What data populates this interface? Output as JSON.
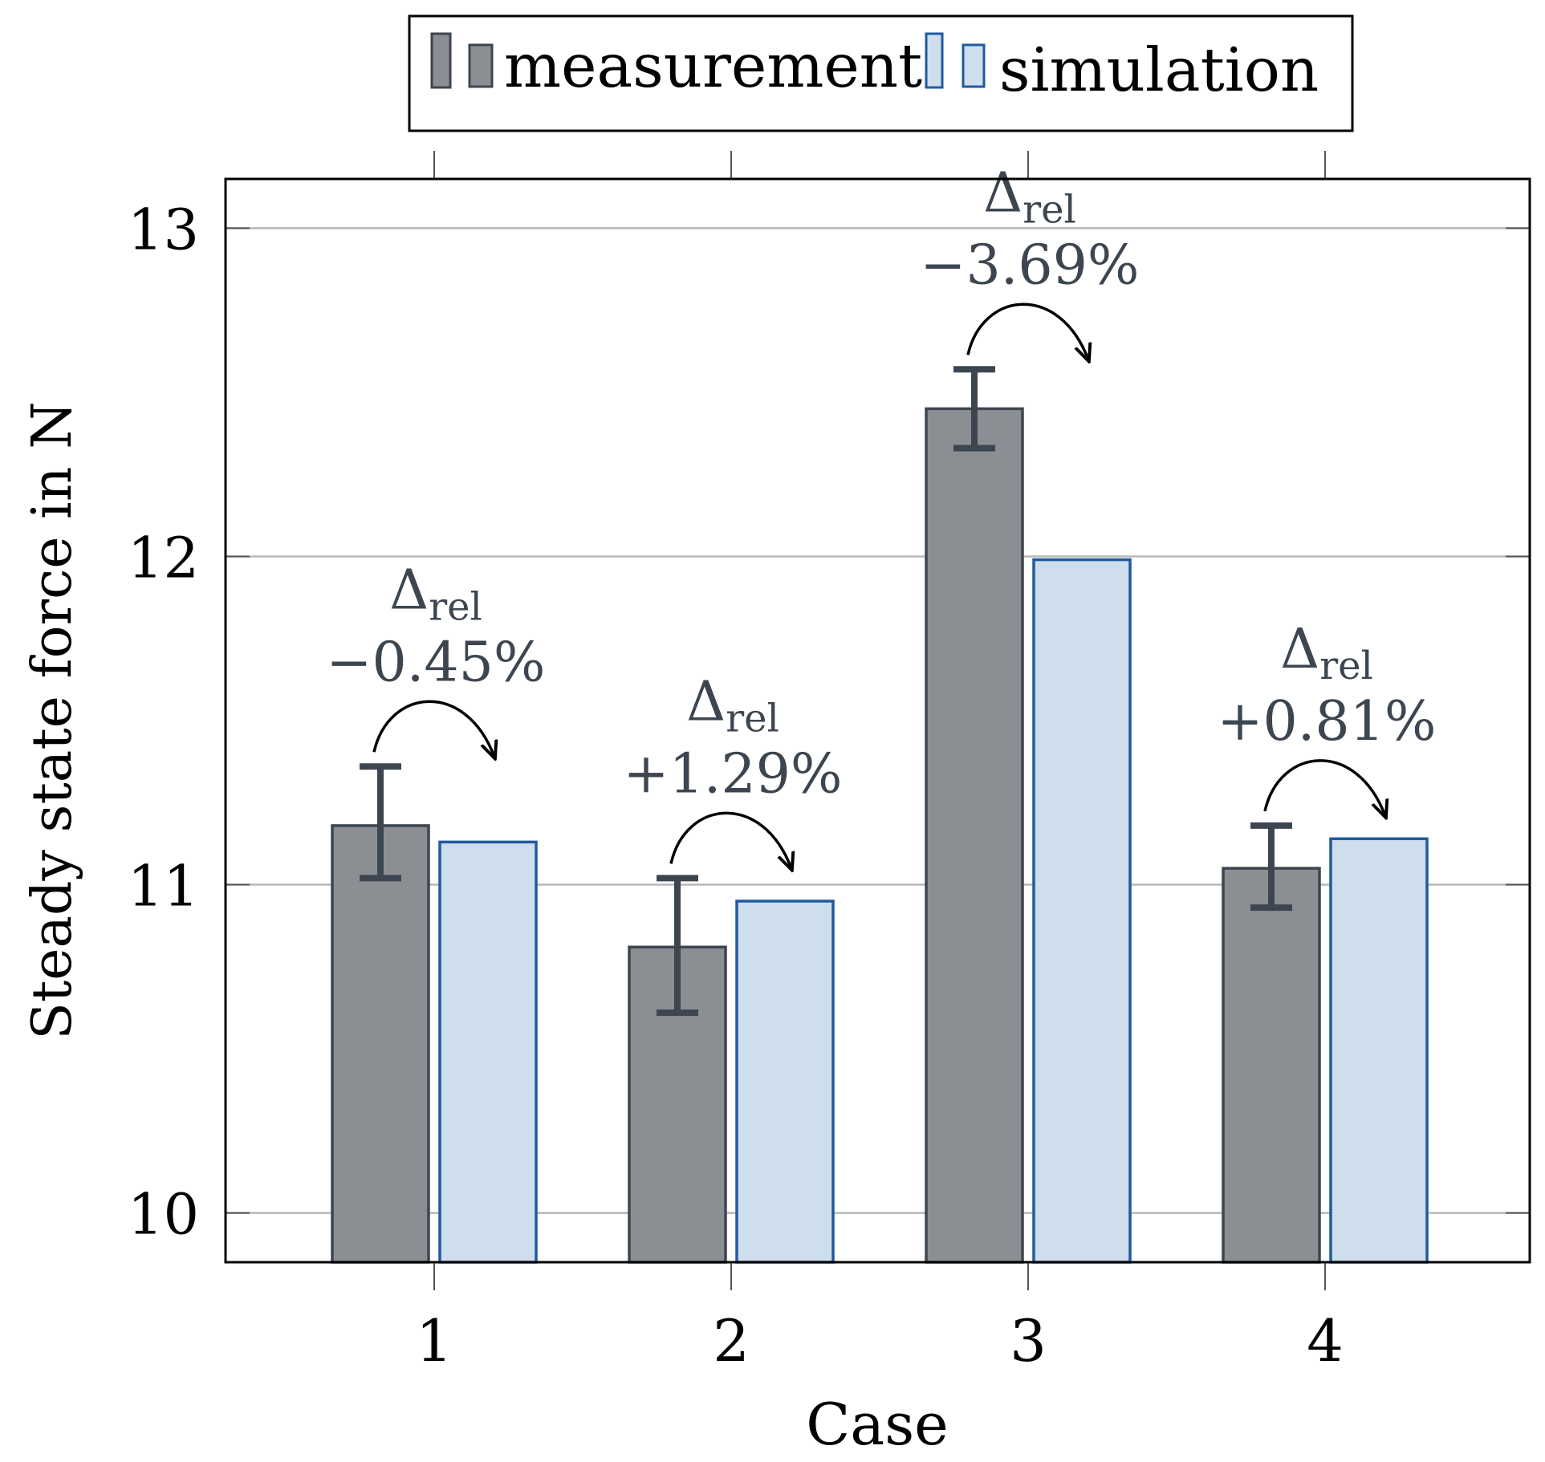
{
  "chart_data": {
    "type": "bar",
    "xlabel": "Case",
    "ylabel": "Steady state force in N",
    "categories": [
      "1",
      "2",
      "3",
      "4"
    ],
    "ylim": [
      9.85,
      13.15
    ],
    "yticks": [
      10,
      11,
      12,
      13
    ],
    "grid": true,
    "legend_position": "top-center",
    "series": [
      {
        "name": "measurement",
        "values": [
          11.18,
          10.81,
          12.45,
          11.05
        ],
        "error_low": [
          11.02,
          10.61,
          12.33,
          10.93
        ],
        "error_high": [
          11.36,
          11.02,
          12.57,
          11.18
        ],
        "fill": "#8b8e93",
        "stroke": "#3d4650"
      },
      {
        "name": "simulation",
        "values": [
          11.13,
          10.95,
          11.99,
          11.14
        ],
        "fill": "#cedeec",
        "stroke": "#1f5aa0"
      }
    ],
    "annotations": [
      {
        "case": "1",
        "symbol": "Δ",
        "subscript": "rel",
        "value": "−0.45%"
      },
      {
        "case": "2",
        "symbol": "Δ",
        "subscript": "rel",
        "value": "+1.29%"
      },
      {
        "case": "3",
        "symbol": "Δ",
        "subscript": "rel",
        "value": "−3.69%"
      },
      {
        "case": "4",
        "symbol": "Δ",
        "subscript": "rel",
        "value": "+0.81%"
      }
    ]
  }
}
